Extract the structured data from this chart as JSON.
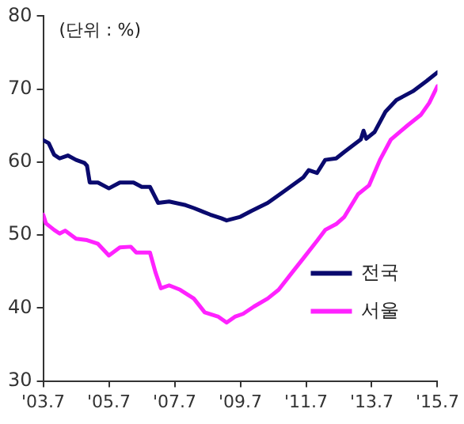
{
  "chart_data": {
    "type": "line",
    "annotations": [
      "(단위 : %)"
    ],
    "xlim": [
      "2003-07",
      "2015-07"
    ],
    "xticks": [
      {
        "value": "2003-07",
        "label": "'03.7"
      },
      {
        "value": "2005-07",
        "label": "'05.7"
      },
      {
        "value": "2007-07",
        "label": "'07.7"
      },
      {
        "value": "2009-07",
        "label": "'09.7"
      },
      {
        "value": "2011-07",
        "label": "'11.7"
      },
      {
        "value": "2013-07",
        "label": "'13.7"
      },
      {
        "value": "2015-07",
        "label": "'15.7"
      }
    ],
    "ylim": [
      30,
      80
    ],
    "yticks": [
      30,
      40,
      50,
      60,
      70,
      80
    ],
    "legend": "bottom right",
    "marker": "none",
    "line_style": "solid",
    "series": [
      {
        "name": "전국",
        "color": "#0a0a6e",
        "x": [
          "2003-07",
          "2003-09",
          "2003-11",
          "2004-01",
          "2004-04",
          "2004-07",
          "2004-10",
          "2004-11",
          "2004-12",
          "2005-03",
          "2005-07",
          "2005-11",
          "2006-04",
          "2006-07",
          "2006-10",
          "2007-01",
          "2007-05",
          "2007-11",
          "2008-02",
          "2008-08",
          "2008-12",
          "2009-02",
          "2009-07",
          "2009-11",
          "2010-05",
          "2010-11",
          "2011-06",
          "2011-08",
          "2011-11",
          "2012-02",
          "2012-06",
          "2012-09",
          "2013-03",
          "2013-04",
          "2013-05",
          "2013-08",
          "2013-12",
          "2014-04",
          "2014-10",
          "2015-03",
          "2015-07"
        ],
        "values": [
          63.0,
          62.6,
          61.0,
          60.5,
          60.9,
          60.3,
          59.9,
          59.5,
          57.2,
          57.2,
          56.4,
          57.2,
          57.2,
          56.6,
          56.6,
          54.4,
          54.6,
          54.1,
          53.7,
          52.8,
          52.3,
          52.0,
          52.5,
          53.3,
          54.4,
          56.0,
          57.9,
          58.9,
          58.5,
          60.3,
          60.5,
          61.4,
          63.1,
          64.3,
          63.2,
          64.1,
          66.9,
          68.5,
          69.7,
          71.1,
          72.3
        ]
      },
      {
        "name": "서울",
        "color": "#ff22ff",
        "x": [
          "2003-07",
          "2003-08",
          "2003-11",
          "2004-01",
          "2004-03",
          "2004-07",
          "2004-11",
          "2005-03",
          "2005-07",
          "2005-11",
          "2006-03",
          "2006-05",
          "2006-10",
          "2006-12",
          "2007-02",
          "2007-05",
          "2007-09",
          "2008-02",
          "2008-06",
          "2008-11",
          "2009-02",
          "2009-05",
          "2009-08",
          "2009-12",
          "2010-05",
          "2010-09",
          "2011-02",
          "2011-06",
          "2011-11",
          "2012-02",
          "2012-06",
          "2012-09",
          "2013-02",
          "2013-06",
          "2013-10",
          "2014-02",
          "2014-08",
          "2015-01",
          "2015-04",
          "2015-07"
        ],
        "values": [
          52.8,
          51.6,
          50.7,
          50.2,
          50.6,
          49.5,
          49.3,
          48.8,
          47.2,
          48.3,
          48.4,
          47.6,
          47.6,
          44.9,
          42.7,
          43.1,
          42.5,
          41.3,
          39.4,
          38.8,
          38.0,
          38.8,
          39.2,
          40.2,
          41.3,
          42.5,
          44.9,
          46.8,
          49.2,
          50.7,
          51.5,
          52.5,
          55.6,
          56.8,
          60.3,
          63.1,
          65.0,
          66.5,
          68.1,
          70.4
        ]
      }
    ]
  }
}
